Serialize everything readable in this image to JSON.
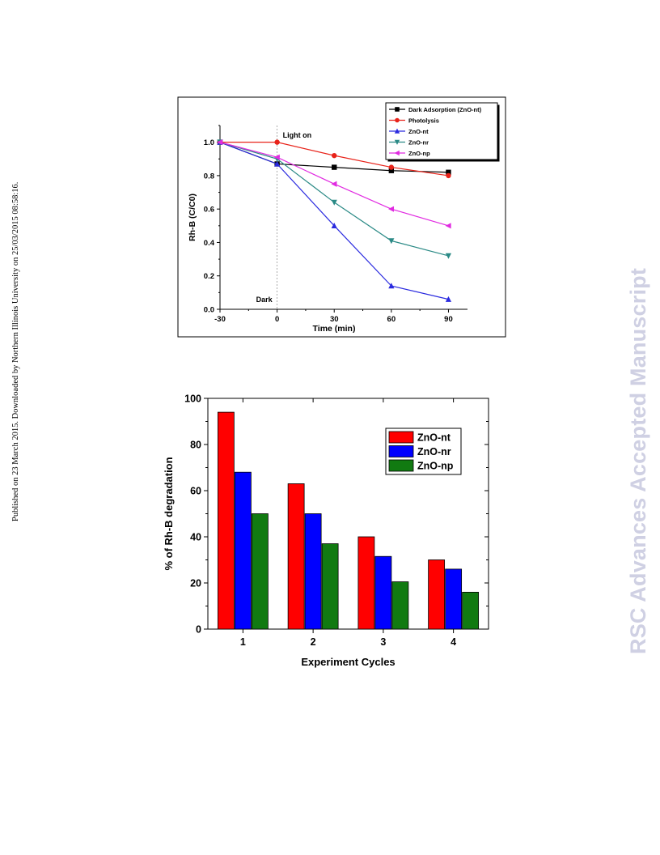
{
  "page": {
    "side_note": "Published on 23 March 2015. Downloaded by Northern Illinois University on 25/03/2015 08:58:16.",
    "watermark": "RSC Advances Accepted Manuscript"
  },
  "chart_data": [
    {
      "type": "line",
      "title": "",
      "xlabel": "Time (min)",
      "ylabel": "Rh-B (C/C0)",
      "x": [
        -30,
        0,
        30,
        60,
        90
      ],
      "xlim": [
        -30,
        100
      ],
      "ylim": [
        0.0,
        1.1
      ],
      "xticks": [
        "-30",
        "0",
        "30",
        "60",
        "90"
      ],
      "yticks": [
        "0.0",
        "0.2",
        "0.4",
        "0.6",
        "0.8",
        "1.0"
      ],
      "annotations": {
        "light_on": "Light on",
        "dark": "Dark"
      },
      "legend_position": "top-right",
      "series": [
        {
          "name": "Dark Adsorption (ZnO-nt)",
          "color": "#000000",
          "marker": "square",
          "values": [
            1.0,
            0.87,
            0.85,
            0.83,
            0.82
          ]
        },
        {
          "name": "Photolysis",
          "color": "#e8231a",
          "marker": "circle",
          "values": [
            1.0,
            1.0,
            0.92,
            0.85,
            0.8
          ]
        },
        {
          "name": "ZnO-nt",
          "color": "#2a2adf",
          "marker": "triangle-up",
          "values": [
            1.0,
            0.87,
            0.5,
            0.14,
            0.06
          ]
        },
        {
          "name": "ZnO-nr",
          "color": "#2b8a86",
          "marker": "triangle-down",
          "values": [
            1.0,
            0.9,
            0.64,
            0.41,
            0.32
          ]
        },
        {
          "name": "ZnO-np",
          "color": "#e12be1",
          "marker": "triangle-left",
          "values": [
            1.0,
            0.91,
            0.75,
            0.6,
            0.5
          ]
        }
      ]
    },
    {
      "type": "bar",
      "title": "",
      "xlabel": "Experiment Cycles",
      "ylabel": "% of Rh-B degradation",
      "categories": [
        "1",
        "2",
        "3",
        "4"
      ],
      "ylim": [
        0,
        100
      ],
      "yticks": [
        "0",
        "20",
        "40",
        "60",
        "80",
        "100"
      ],
      "legend_position": "top-right",
      "series": [
        {
          "name": "ZnO-nt",
          "color": "#ff0000",
          "values": [
            94,
            63,
            40,
            30
          ]
        },
        {
          "name": "ZnO-nr",
          "color": "#0000ff",
          "values": [
            68,
            50,
            31.5,
            26
          ]
        },
        {
          "name": "ZnO-np",
          "color": "#117a11",
          "values": [
            50,
            37,
            20.5,
            16
          ]
        }
      ]
    }
  ]
}
